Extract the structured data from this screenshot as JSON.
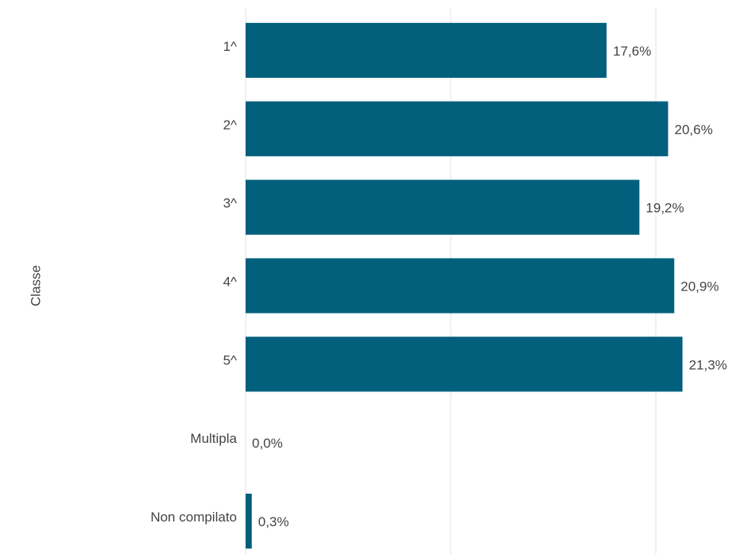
{
  "chart_data": {
    "type": "bar",
    "orientation": "horizontal",
    "y_label": "Classe",
    "categories": [
      "1^",
      "2^",
      "3^",
      "4^",
      "5^",
      "Multipla",
      "Non compilato"
    ],
    "values": [
      17.6,
      20.6,
      19.2,
      20.9,
      21.3,
      0.0,
      0.3
    ],
    "value_labels": [
      "17,6%",
      "20,6%",
      "19,2%",
      "20,9%",
      "21,3%",
      "0,0%",
      "0,3%"
    ],
    "color": "#03607d",
    "xlim": [
      0,
      24.3
    ],
    "xticks": [
      0,
      10,
      20
    ],
    "grid": true
  }
}
